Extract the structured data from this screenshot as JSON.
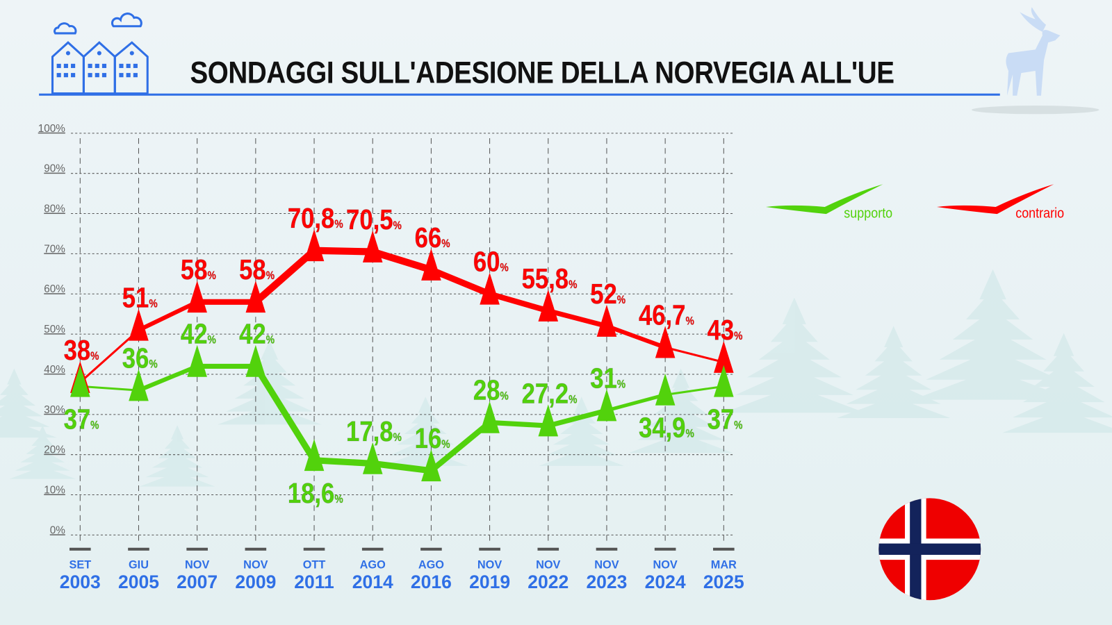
{
  "title": "SONDAGGI SULL'ADESIONE DELLA NORVEGIA ALL'UE",
  "colors": {
    "support": "#52d20c",
    "against": "#ff0000",
    "accent": "#2f6fe6",
    "flag_red": "#ef0000",
    "flag_blue": "#13235b"
  },
  "icons": [
    "houses-icon",
    "cloud-icon",
    "moose-icon",
    "norway-flag-icon",
    "tree-background"
  ],
  "chart_data": {
    "type": "line",
    "title": "SONDAGGI SULL'ADESIONE DELLA NORVEGIA ALL'UE",
    "ylim": [
      0,
      100
    ],
    "yticks": [
      "0%",
      "10%",
      "20%",
      "30%",
      "40%",
      "50%",
      "60%",
      "70%",
      "80%",
      "90%",
      "100%"
    ],
    "grid": true,
    "legend_position": "right",
    "categories": [
      {
        "month": "SET",
        "year": "2003"
      },
      {
        "month": "GIU",
        "year": "2005"
      },
      {
        "month": "NOV",
        "year": "2007"
      },
      {
        "month": "NOV",
        "year": "2009"
      },
      {
        "month": "OTT",
        "year": "2011"
      },
      {
        "month": "AGO",
        "year": "2014"
      },
      {
        "month": "AGO",
        "year": "2016"
      },
      {
        "month": "NOV",
        "year": "2019"
      },
      {
        "month": "NOV",
        "year": "2022"
      },
      {
        "month": "NOV",
        "year": "2023"
      },
      {
        "month": "NOV",
        "year": "2024"
      },
      {
        "month": "MAR",
        "year": "2025"
      }
    ],
    "series": [
      {
        "name": "contrario",
        "values": [
          38,
          51,
          58,
          58,
          70.8,
          70.5,
          66,
          60,
          55.8,
          52,
          46.7,
          43
        ],
        "labels": [
          "38",
          "51",
          "58",
          "58",
          "70,8",
          "70,5",
          "66",
          "60",
          "55,8",
          "52",
          "46,7",
          "43"
        ]
      },
      {
        "name": "supporto",
        "values": [
          37,
          36,
          42,
          42,
          18.6,
          17.8,
          16,
          28,
          27.2,
          31,
          34.9,
          37
        ],
        "labels": [
          "37",
          "36",
          "42",
          "42",
          "18,6",
          "17,8",
          "16",
          "28",
          "27,2",
          "31",
          "34,9",
          "37"
        ]
      }
    ],
    "percent_sign": "%"
  }
}
